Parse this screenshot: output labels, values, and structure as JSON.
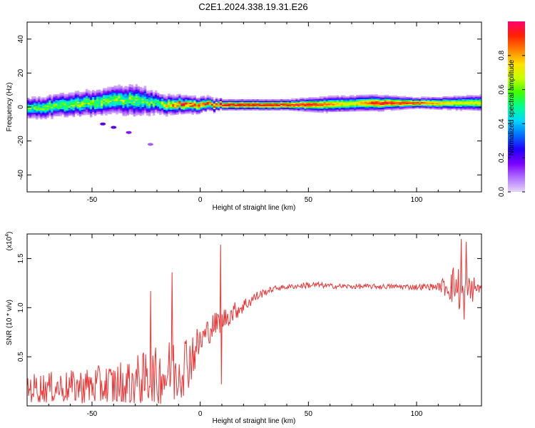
{
  "title": "C2E1.2024.338.19.31.E26",
  "chart_data": [
    {
      "type": "heatmap",
      "xlabel": "Height of straight line (km)",
      "ylabel": "Frequency (Hz)",
      "xlim": [
        -80,
        130
      ],
      "ylim": [
        -50,
        50
      ],
      "x_ticks": [
        -50,
        0,
        50,
        100
      ],
      "x_tick_labels": [
        "-50",
        "0",
        "50",
        "100"
      ],
      "y_ticks": [
        40,
        20,
        0,
        -20,
        -40
      ],
      "y_tick_labels": [
        "40",
        "20",
        "0",
        "-20",
        "-40"
      ],
      "colorbar": {
        "label": "Normalized spectral amplitude",
        "range": [
          0,
          1
        ],
        "ticks": [
          0.0,
          0.2,
          0.4,
          0.6,
          0.8
        ],
        "tick_labels": [
          "0.0",
          "0.2",
          "0.4",
          "0.6",
          "0.8"
        ],
        "colors": [
          "#e6d6f7",
          "#b070ff",
          "#7a00ff",
          "#2000ff",
          "#0070ff",
          "#00d8ff",
          "#00ff90",
          "#40ff00",
          "#c8ff00",
          "#ffe000",
          "#ff8000",
          "#ff2000",
          "#ff0070"
        ]
      },
      "band_center_hz": [
        [
          -80,
          -1
        ],
        [
          -60,
          1
        ],
        [
          -45,
          3
        ],
        [
          -35,
          4
        ],
        [
          -25,
          3
        ],
        [
          -15,
          1
        ],
        [
          -5,
          1
        ],
        [
          5,
          1
        ],
        [
          10,
          1
        ],
        [
          30,
          1
        ],
        [
          50,
          1
        ],
        [
          80,
          2
        ],
        [
          100,
          2
        ],
        [
          120,
          2
        ],
        [
          130,
          2
        ]
      ],
      "band_halfwidth_hz": [
        [
          -80,
          4
        ],
        [
          -45,
          5
        ],
        [
          -30,
          6
        ],
        [
          -20,
          4
        ],
        [
          0,
          3
        ],
        [
          10,
          2
        ],
        [
          40,
          2
        ],
        [
          60,
          3
        ],
        [
          80,
          3
        ],
        [
          100,
          2
        ],
        [
          130,
          3
        ]
      ],
      "band_peak_amplitude": [
        [
          -80,
          0.55
        ],
        [
          -60,
          0.6
        ],
        [
          -40,
          0.6
        ],
        [
          -20,
          0.55
        ],
        [
          -10,
          0.85
        ],
        [
          5,
          0.8
        ],
        [
          10,
          0.95
        ],
        [
          50,
          0.95
        ],
        [
          70,
          0.7
        ],
        [
          80,
          0.95
        ],
        [
          100,
          0.9
        ],
        [
          115,
          0.75
        ],
        [
          130,
          0.7
        ]
      ],
      "blobs": [
        {
          "x": -45,
          "y": -10,
          "amplitude": 0.2
        },
        {
          "x": -40,
          "y": -12,
          "amplitude": 0.2
        },
        {
          "x": -33,
          "y": -15,
          "amplitude": 0.15
        },
        {
          "x": -23,
          "y": -22,
          "amplitude": 0.1
        }
      ]
    },
    {
      "type": "line",
      "xlabel": "Height of straight line (km)",
      "ylabel": "SNR (10 * v/v)",
      "y_multiplier": "(x10",
      "y_multiplier_exp": "4",
      "y_multiplier_close": ")",
      "xlim": [
        -80,
        130
      ],
      "ylim": [
        0,
        17500
      ],
      "x_ticks": [
        -50,
        0,
        50,
        100
      ],
      "x_tick_labels": [
        "-50",
        "0",
        "50",
        "100"
      ],
      "y_ticks": [
        5000,
        10000,
        15000
      ],
      "y_tick_labels": [
        "0.5",
        "1.0",
        "1.5"
      ],
      "color": "#ee3333",
      "envelope": {
        "x": [
          -80,
          -60,
          -40,
          -20,
          -12,
          -5,
          0,
          5,
          10,
          15,
          20,
          25,
          30,
          35,
          40,
          45,
          50,
          55,
          60,
          70,
          80,
          90,
          100,
          110,
          118,
          123,
          126,
          130
        ],
        "mean": [
          1800,
          1900,
          2100,
          2800,
          3500,
          4800,
          6500,
          8000,
          8700,
          9500,
          10200,
          11000,
          11600,
          12000,
          12100,
          12200,
          12300,
          12300,
          12200,
          12150,
          12150,
          12150,
          12100,
          12150,
          12300,
          11000,
          12000,
          12000
        ],
        "noise": [
          1500,
          1700,
          2300,
          3200,
          3700,
          3000,
          1700,
          1400,
          1200,
          1000,
          800,
          600,
          350,
          250,
          250,
          250,
          350,
          300,
          250,
          250,
          250,
          250,
          300,
          350,
          2300,
          2400,
          1400,
          300
        ]
      },
      "peaks": [
        {
          "x": 9.5,
          "y": 16400
        },
        {
          "x": 9.8,
          "y": 2200
        },
        {
          "x": -13,
          "y": 13600
        },
        {
          "x": -23,
          "y": 11700
        },
        {
          "x": 120.5,
          "y": 17000
        },
        {
          "x": 123,
          "y": 16700
        },
        {
          "x": 122,
          "y": 8800
        }
      ]
    }
  ]
}
